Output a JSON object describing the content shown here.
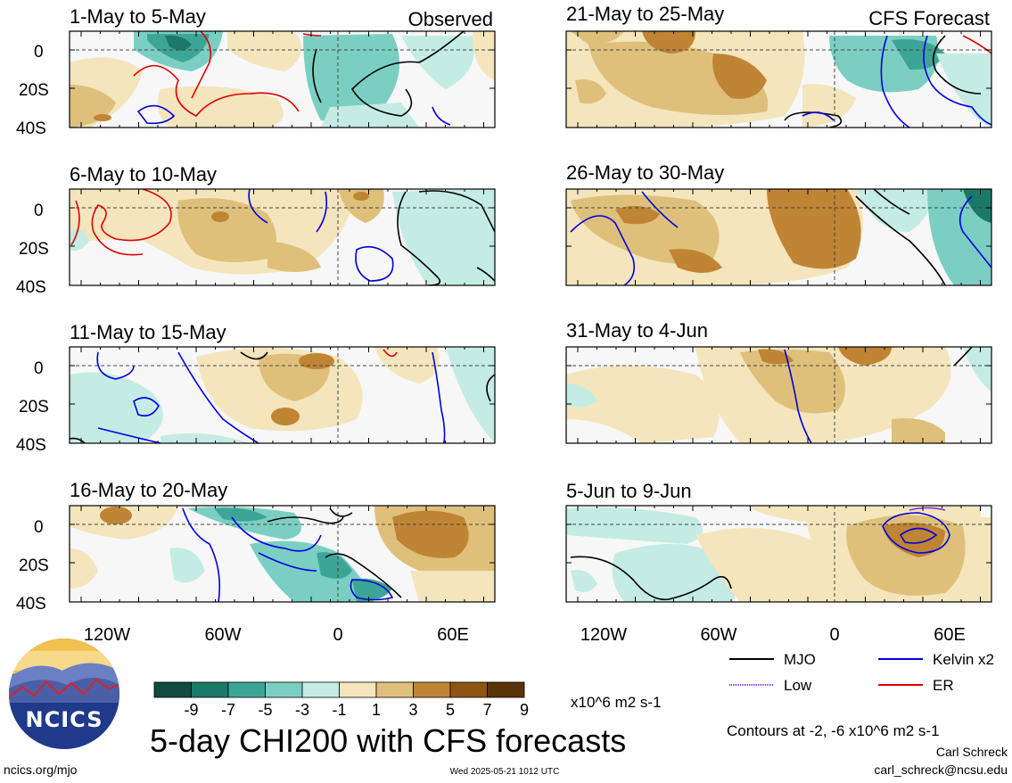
{
  "colors": {
    "teal_scale": [
      "#0f4b3f",
      "#197a68",
      "#3da595",
      "#7bcfc2",
      "#c4ece4"
    ],
    "neutral": "#f7f7f7",
    "brown_scale": [
      "#f4e5bd",
      "#dfc07b",
      "#bf8434",
      "#8e5512",
      "#5b3309"
    ],
    "mjo": "#000000",
    "kelvin": "#0000e0",
    "low": "#8a2be2",
    "er": "#e00000"
  },
  "panels": [
    {
      "id": "p1",
      "title": "1-May to 5-May",
      "tag": "Observed"
    },
    {
      "id": "p2",
      "title": "6-May to 10-May",
      "tag": ""
    },
    {
      "id": "p3",
      "title": "11-May to 15-May",
      "tag": ""
    },
    {
      "id": "p4",
      "title": "16-May to 20-May",
      "tag": ""
    },
    {
      "id": "p5",
      "title": "21-May to 25-May",
      "tag": "CFS Forecast"
    },
    {
      "id": "p6",
      "title": "26-May to 30-May",
      "tag": ""
    },
    {
      "id": "p7",
      "title": "31-May to 4-Jun",
      "tag": ""
    },
    {
      "id": "p8",
      "title": "5-Jun to 9-Jun",
      "tag": ""
    }
  ],
  "axes": {
    "lat_labels": [
      "0",
      "20S",
      "40S"
    ],
    "lon_labels": [
      "120W",
      "60W",
      "0",
      "60E"
    ]
  },
  "colorbar": {
    "ticks": [
      "-9",
      "-7",
      "-5",
      "-3",
      "-1",
      "1",
      "3",
      "5",
      "7",
      "9"
    ],
    "units": "x10^6 m2 s-1"
  },
  "legend": {
    "mjo": "MJO",
    "low": "Low",
    "kelvin": "Kelvin x2",
    "er": "ER"
  },
  "footer": {
    "main_title": "5-day CHI200 with CFS forecasts",
    "contours_note": "Contours at -2, -6 x10^6 m2 s-1",
    "author": "Carl Schreck",
    "email": "carl_schreck@ncsu.edu",
    "site": "ncics.org/mjo",
    "timestamp": "Wed 2025-05-21 1012 UTC",
    "logo_text": "NCICS"
  }
}
